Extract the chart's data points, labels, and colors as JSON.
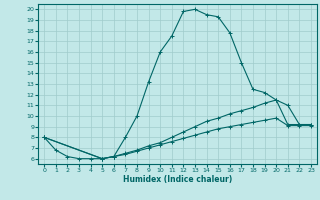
{
  "xlabel": "Humidex (Indice chaleur)",
  "bg_color": "#c2e8e8",
  "grid_color": "#a0cccc",
  "line_color": "#006666",
  "xlim": [
    -0.5,
    23.5
  ],
  "ylim": [
    5.5,
    20.5
  ],
  "xticks": [
    0,
    1,
    2,
    3,
    4,
    5,
    6,
    7,
    8,
    9,
    10,
    11,
    12,
    13,
    14,
    15,
    16,
    17,
    18,
    19,
    20,
    21,
    22,
    23
  ],
  "yticks": [
    6,
    7,
    8,
    9,
    10,
    11,
    12,
    13,
    14,
    15,
    16,
    17,
    18,
    19,
    20
  ],
  "line1_x": [
    0,
    1,
    2,
    3,
    4,
    5,
    6,
    7,
    8,
    9,
    10,
    11,
    12,
    13,
    14,
    15,
    16,
    17,
    18,
    19,
    20,
    21,
    22,
    23
  ],
  "line1_y": [
    8.0,
    6.8,
    6.2,
    6.0,
    6.0,
    6.0,
    6.2,
    8.0,
    10.0,
    13.2,
    16.0,
    17.5,
    19.8,
    20.0,
    19.5,
    19.3,
    17.8,
    15.0,
    12.5,
    12.2,
    11.5,
    11.0,
    9.2,
    9.2
  ],
  "line2_x": [
    0,
    5,
    6,
    7,
    8,
    9,
    10,
    11,
    12,
    13,
    14,
    15,
    16,
    17,
    18,
    19,
    20,
    21,
    22,
    23
  ],
  "line2_y": [
    8.0,
    6.0,
    6.2,
    6.5,
    6.8,
    7.2,
    7.5,
    8.0,
    8.5,
    9.0,
    9.5,
    9.8,
    10.2,
    10.5,
    10.8,
    11.2,
    11.5,
    9.2,
    9.2,
    9.2
  ],
  "line3_x": [
    0,
    5,
    6,
    7,
    8,
    9,
    10,
    11,
    12,
    13,
    14,
    15,
    16,
    17,
    18,
    19,
    20,
    21,
    22,
    23
  ],
  "line3_y": [
    8.0,
    6.0,
    6.2,
    6.4,
    6.7,
    7.0,
    7.3,
    7.6,
    7.9,
    8.2,
    8.5,
    8.8,
    9.0,
    9.2,
    9.4,
    9.6,
    9.8,
    9.1,
    9.1,
    9.1
  ]
}
